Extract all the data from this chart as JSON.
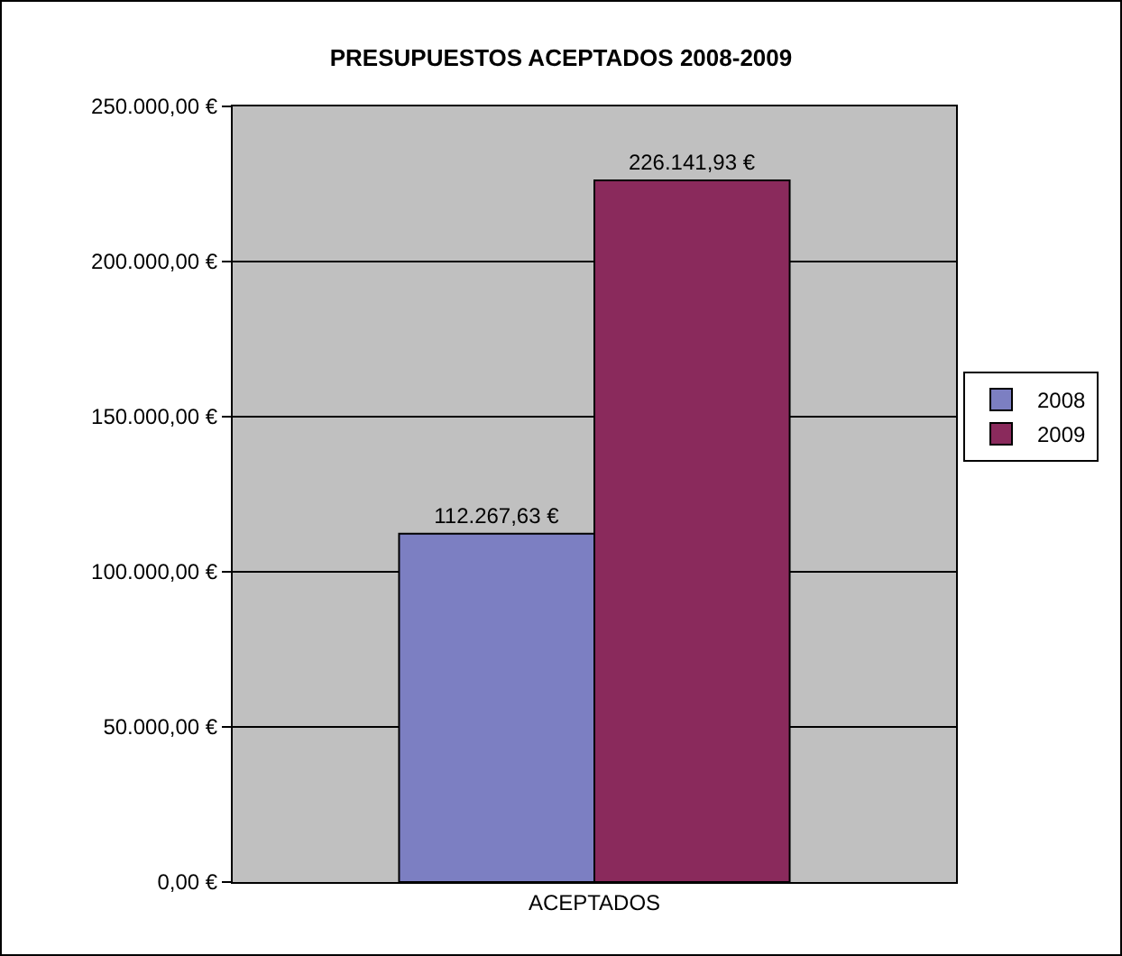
{
  "chart_data": {
    "type": "bar",
    "title": "PRESUPUESTOS ACEPTADOS 2008-2009",
    "categories": [
      "ACEPTADOS"
    ],
    "series": [
      {
        "name": "2008",
        "color": "#7c7fc2",
        "values": [
          112267.63
        ],
        "value_labels": [
          "112.267,63 €"
        ]
      },
      {
        "name": "2009",
        "color": "#8a2a5c",
        "values": [
          226141.93
        ],
        "value_labels": [
          "226.141,93 €"
        ]
      }
    ],
    "ylim": [
      0,
      250000
    ],
    "yticks": [
      {
        "value": 0,
        "label": "0,00 €"
      },
      {
        "value": 50000,
        "label": "50.000,00 €"
      },
      {
        "value": 100000,
        "label": "100.000,00 €"
      },
      {
        "value": 150000,
        "label": "150.000,00 €"
      },
      {
        "value": 200000,
        "label": "200.000,00 €"
      },
      {
        "value": 250000,
        "label": "250.000,00 €"
      }
    ],
    "grid": "y",
    "legend": "right"
  }
}
